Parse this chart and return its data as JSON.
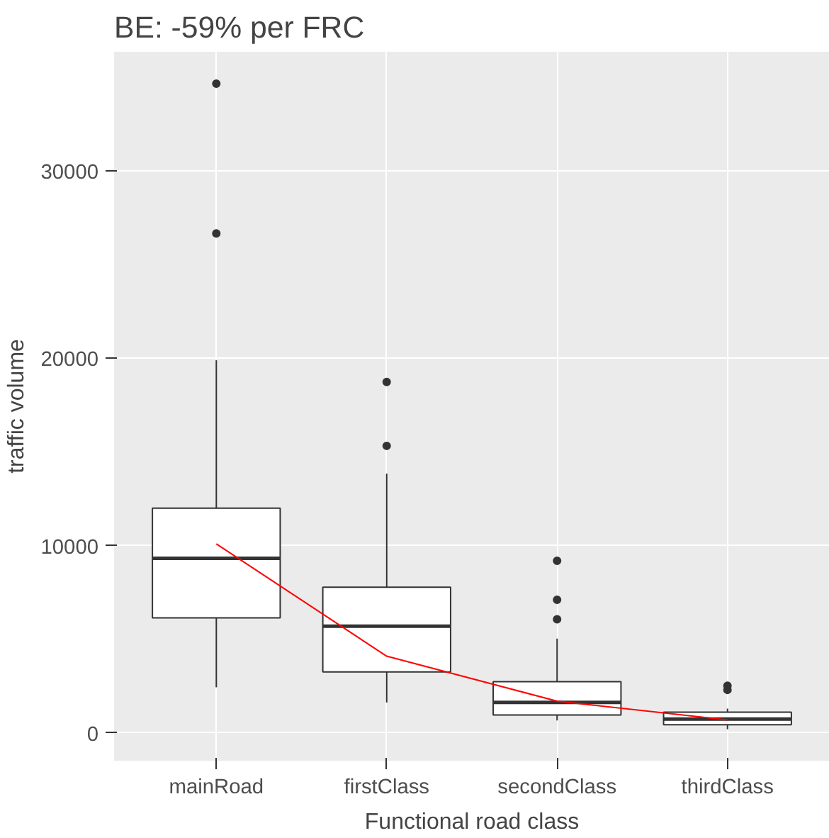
{
  "chart_data": {
    "type": "box",
    "title": "BE: -59% per FRC",
    "xlabel": "Functional road class",
    "ylabel": "traffic volume",
    "categories": [
      "mainRoad",
      "firstClass",
      "secondClass",
      "thirdClass"
    ],
    "boxes": [
      {
        "low": 2440,
        "q1": 6150,
        "median": 9330,
        "q3": 12000,
        "high": 19900,
        "outliers": [
          26670,
          34670
        ]
      },
      {
        "low": 1630,
        "q1": 3260,
        "median": 5700,
        "q3": 7780,
        "high": 13850,
        "outliers": [
          15330,
          18740
        ]
      },
      {
        "low": 670,
        "q1": 960,
        "median": 1630,
        "q3": 2740,
        "high": 5040,
        "outliers": [
          6070,
          7110,
          9190
        ]
      },
      {
        "low": 200,
        "q1": 440,
        "median": 740,
        "q3": 1110,
        "high": 1300,
        "outliers": [
          2300,
          2520
        ]
      }
    ],
    "series": [
      {
        "type": "line",
        "color": "#ff0000",
        "values": [
          10100,
          4100,
          1700,
          700
        ]
      }
    ],
    "ylim": [
      -1480,
      36370
    ],
    "yticks": [
      0,
      10000,
      20000,
      30000
    ],
    "grid": true
  }
}
